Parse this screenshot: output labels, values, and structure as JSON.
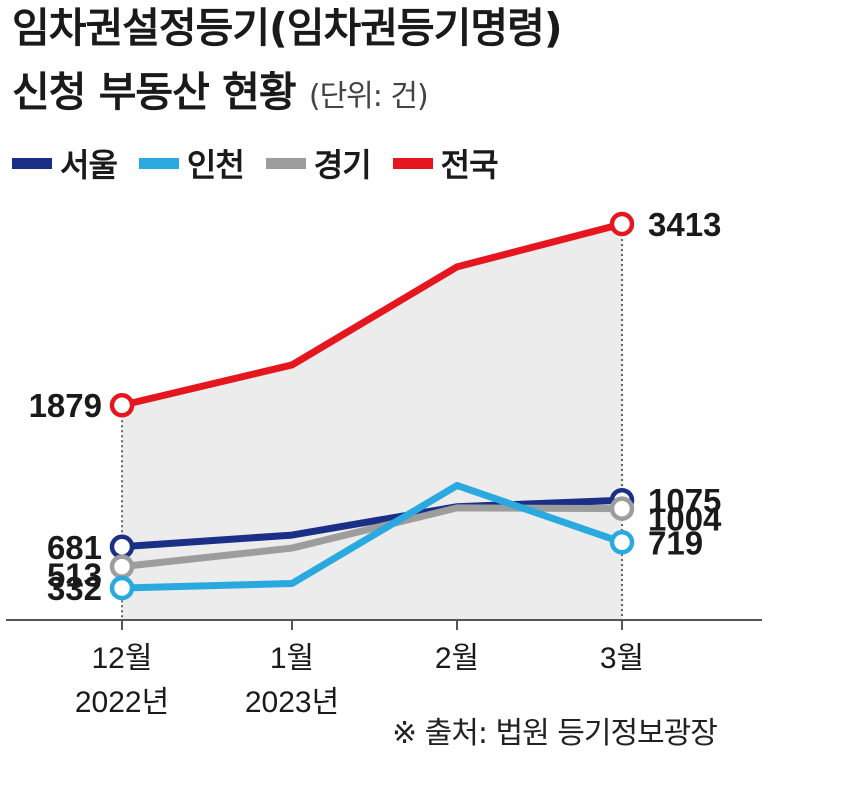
{
  "title_line1": "임차권설정등기(임차권등기명령)",
  "title_line2": "신청 부동산 현황",
  "unit": "(단위: 건)",
  "source": "※ 출처: 법원 등기정보광장",
  "chart_data": {
    "type": "line",
    "categories": [
      "12월",
      "1월",
      "2월",
      "3월"
    ],
    "category_sublabels": [
      "2022년",
      "2023년",
      "",
      ""
    ],
    "ylim": [
      0,
      3700
    ],
    "series": [
      {
        "name": "서울",
        "color": "#1b2f86",
        "values": [
          681,
          780,
          1020,
          1075
        ],
        "labeled": [
          true,
          false,
          false,
          true
        ],
        "endpoint_label": "1075"
      },
      {
        "name": "인천",
        "color": "#2aa9e0",
        "values": [
          332,
          370,
          1200,
          719
        ],
        "labeled": [
          true,
          false,
          false,
          true
        ],
        "endpoint_label": "719"
      },
      {
        "name": "경기",
        "color": "#9d9d9d",
        "values": [
          513,
          670,
          1010,
          1004
        ],
        "labeled": [
          true,
          false,
          false,
          true
        ],
        "endpoint_label": "1004"
      },
      {
        "name": "전국",
        "color": "#e5161d",
        "values": [
          1879,
          2220,
          3050,
          3413
        ],
        "labeled": [
          true,
          false,
          false,
          true
        ],
        "endpoint_label": "3413"
      }
    ],
    "start_labels": [
      "681",
      "332",
      "513",
      "1879"
    ],
    "grid": false,
    "legend": "top-left"
  }
}
